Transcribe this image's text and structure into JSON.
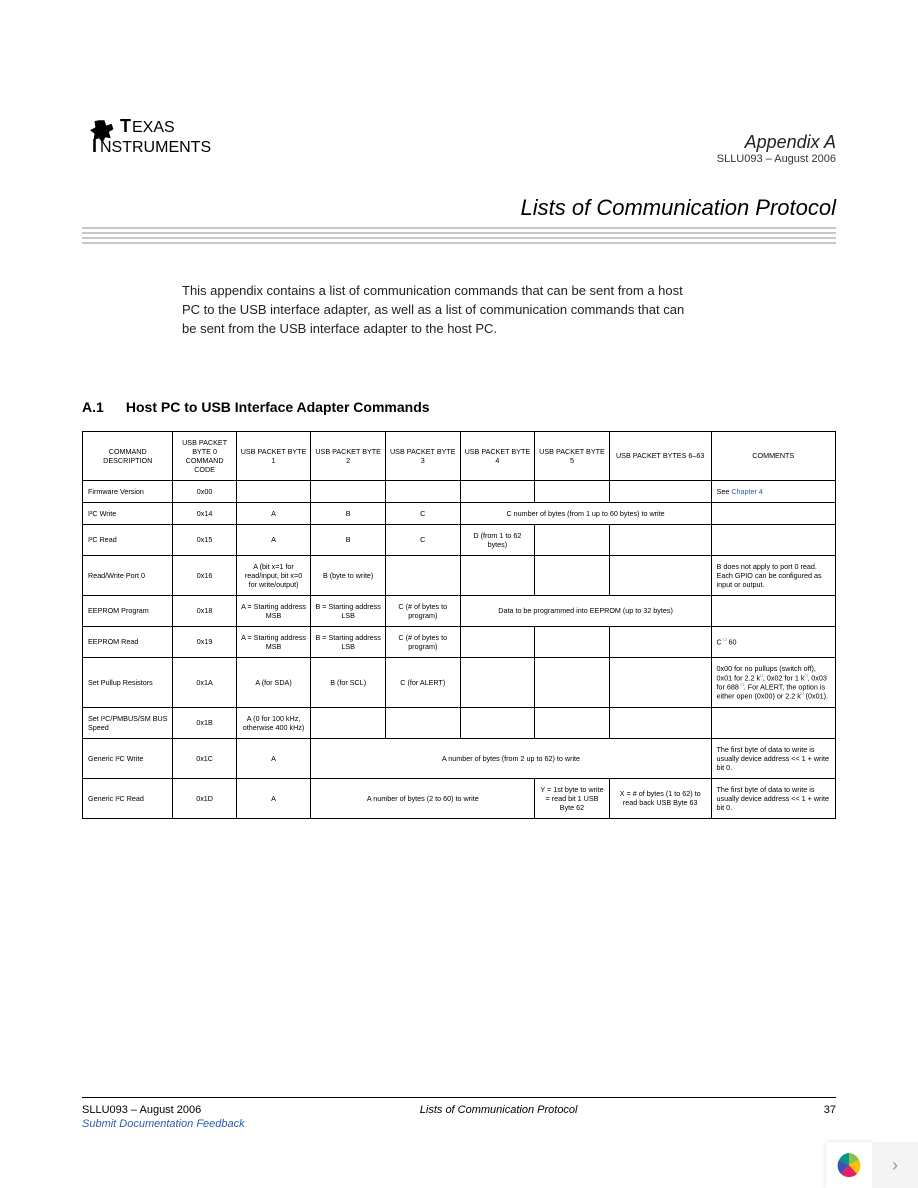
{
  "header": {
    "appendix": "Appendix A",
    "docid": "SLLU093 – August 2006",
    "title": "Lists of Communication Protocol"
  },
  "intro": "This appendix contains a list of communication commands that can be sent from a host PC to the USB interface adapter, as well as a list of communication commands that can be sent from the USB interface adapter to the host PC.",
  "section": {
    "number": "A.1",
    "title": "Host PC to USB Interface Adapter Commands"
  },
  "table": {
    "headers": [
      "COMMAND DESCRIPTION",
      "USB PACKET BYTE 0 COMMAND CODE",
      "USB PACKET BYTE 1",
      "USB PACKET BYTE 2",
      "USB PACKET BYTE 3",
      "USB PACKET BYTE 4",
      "USB PACKET BYTE 5",
      "USB PACKET BYTES 6–63",
      "COMMENTS"
    ],
    "col_widths": [
      "80",
      "56",
      "66",
      "66",
      "66",
      "66",
      "66",
      "90",
      "110"
    ],
    "rows": [
      {
        "c": [
          {
            "t": "Firmware Version",
            "cls": "left"
          },
          {
            "t": "0x00"
          },
          {
            "t": ""
          },
          {
            "t": ""
          },
          {
            "t": ""
          },
          {
            "t": ""
          },
          {
            "t": ""
          },
          {
            "t": ""
          },
          {
            "html": "See <span class='link'>Chapter 4</span>",
            "cls": "left"
          }
        ]
      },
      {
        "c": [
          {
            "t": "I²C Write",
            "cls": "left"
          },
          {
            "t": "0x14"
          },
          {
            "t": "A"
          },
          {
            "t": "B"
          },
          {
            "t": "C"
          },
          {
            "t": "C number of bytes (from 1 up to 60 bytes) to write",
            "span": 3
          },
          {
            "t": ""
          }
        ]
      },
      {
        "c": [
          {
            "t": "I²C Read",
            "cls": "left"
          },
          {
            "t": "0x15"
          },
          {
            "t": "A"
          },
          {
            "t": "B"
          },
          {
            "t": "C"
          },
          {
            "t": "D (from 1 to 62 bytes)"
          },
          {
            "t": ""
          },
          {
            "t": ""
          },
          {
            "t": ""
          }
        ]
      },
      {
        "c": [
          {
            "t": "Read/Write Port 0",
            "cls": "left"
          },
          {
            "t": "0x16"
          },
          {
            "t": "A (bit x=1 for read/input, bit x=0 for write/output)"
          },
          {
            "t": "B (byte to write)"
          },
          {
            "t": ""
          },
          {
            "t": ""
          },
          {
            "t": ""
          },
          {
            "t": ""
          },
          {
            "t": "B does not apply to port 0 read. Each GPIO can be configured as input or output.",
            "cls": "left"
          }
        ]
      },
      {
        "c": [
          {
            "t": "EEPROM Program",
            "cls": "left"
          },
          {
            "t": "0x18"
          },
          {
            "t": "A = Starting address MSB"
          },
          {
            "t": "B = Starting address LSB"
          },
          {
            "t": "C (# of bytes to program)"
          },
          {
            "t": "Data to be programmed into EEPROM (up to 32 bytes)",
            "span": 3
          },
          {
            "t": ""
          }
        ]
      },
      {
        "c": [
          {
            "t": "EEPROM Read",
            "cls": "left"
          },
          {
            "t": "0x19"
          },
          {
            "t": "A = Starting address MSB"
          },
          {
            "t": "B = Starting address LSB"
          },
          {
            "t": "C (# of bytes to program)"
          },
          {
            "t": ""
          },
          {
            "t": ""
          },
          {
            "t": ""
          },
          {
            "html": "C <span class='sup'>□</span> 60",
            "cls": "left"
          }
        ]
      },
      {
        "c": [
          {
            "t": "Set Pullup Resistors",
            "cls": "left"
          },
          {
            "t": "0x1A"
          },
          {
            "t": "A (for SDA)"
          },
          {
            "t": "B (for SCL)"
          },
          {
            "t": "C (for ALERT)"
          },
          {
            "t": ""
          },
          {
            "t": ""
          },
          {
            "t": ""
          },
          {
            "html": "0x00 for no pullups (switch off), 0x01 for 2.2 k<span class='sup'>□</span>, 0x02 for 1 k<span class='sup'>□</span>, 0x03 for 688 <span class='sup'>□</span>. For ALERT, the option is either open (0x00) or 2.2 k<span class='sup'>□</span> (0x01).",
            "cls": "left"
          }
        ]
      },
      {
        "c": [
          {
            "t": "Set I²C/PMBUS/SM BUS Speed",
            "cls": "left"
          },
          {
            "t": "0x1B"
          },
          {
            "t": "A (0 for 100 kHz, otherwise 400 kHz)"
          },
          {
            "t": ""
          },
          {
            "t": ""
          },
          {
            "t": ""
          },
          {
            "t": ""
          },
          {
            "t": ""
          },
          {
            "t": ""
          }
        ]
      },
      {
        "c": [
          {
            "t": "Generic I²C Write",
            "cls": "left"
          },
          {
            "t": "0x1C"
          },
          {
            "t": "A"
          },
          {
            "t": "A number of bytes (from 2 up to 62) to write",
            "span": 5
          },
          {
            "t": "The first byte of data to write is usually device address << 1 + write bit 0.",
            "cls": "left"
          }
        ]
      },
      {
        "c": [
          {
            "t": "Generic I²C Read",
            "cls": "left"
          },
          {
            "t": "0x1D"
          },
          {
            "t": "A"
          },
          {
            "t": "A number of bytes (2 to 60) to write",
            "span": 3
          },
          {
            "t": "Y = 1st byte to write = read bit 1 USB Byte 62"
          },
          {
            "t": "X = # of bytes (1 to 62) to read back USB Byte 63"
          },
          {
            "t": "The first byte of data to write is usually device address << 1 + write bit 0.",
            "cls": "left"
          }
        ]
      }
    ]
  },
  "footer": {
    "left": "SLLU093 – August 2006",
    "mid": "Lists of Communication Protocol",
    "page": "37",
    "feedback": "Submit Documentation Feedback"
  }
}
